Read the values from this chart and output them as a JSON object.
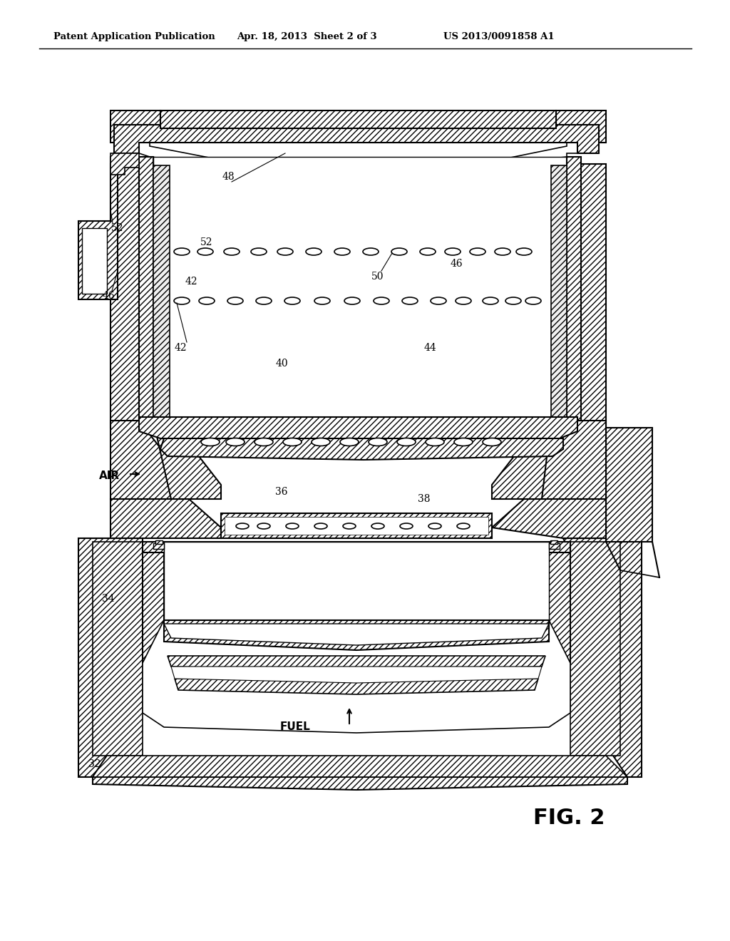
{
  "header_left": "Patent Application Publication",
  "header_center": "Apr. 18, 2013  Sheet 2 of 3",
  "header_right": "US 2013/0091858 A1",
  "figure_label": "FIG. 2",
  "bg": "#ffffff",
  "lc": "#000000",
  "fig_width": 10.24,
  "fig_height": 13.2,
  "dpi": 100
}
